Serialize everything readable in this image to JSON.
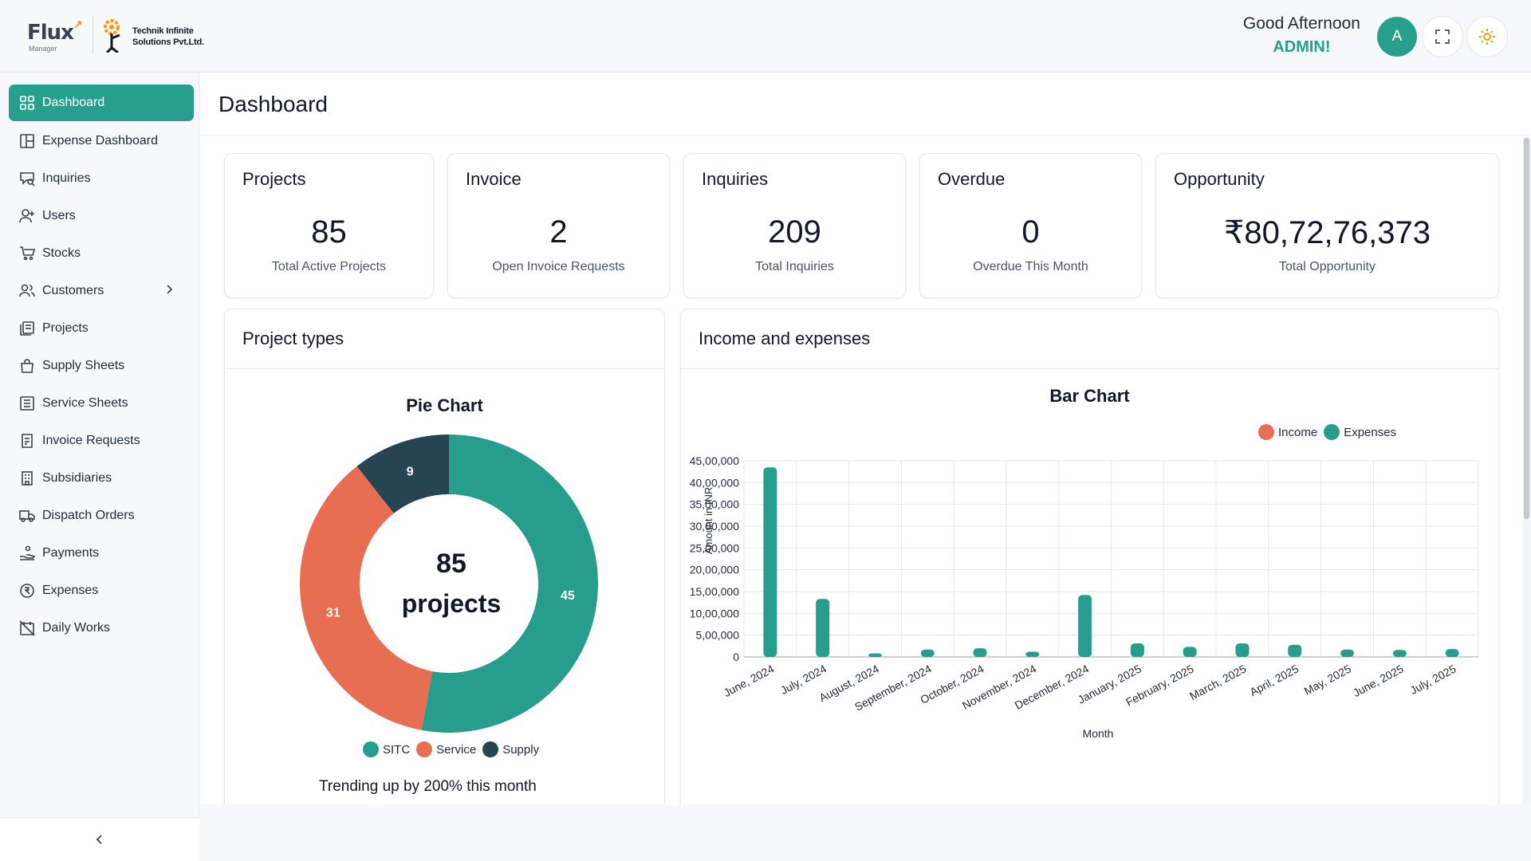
{
  "header": {
    "logo_text": "Flux",
    "logo_sub": "Manager",
    "company_line1": "Technik Infinite",
    "company_line2": "Solutions Pvt.Ltd.",
    "greeting": "Good Afternoon",
    "user_name": "ADMIN!",
    "avatar_letter": "A",
    "fullscreen_icon": "fullscreen-icon",
    "theme_icon": "sun-icon",
    "accent_color": "#26a08d"
  },
  "sidebar": {
    "items": [
      {
        "label": "Dashboard",
        "icon": "grid-icon",
        "active": true
      },
      {
        "label": "Expense Dashboard",
        "icon": "layout-icon"
      },
      {
        "label": "Inquiries",
        "icon": "message-search-icon"
      },
      {
        "label": "Users",
        "icon": "user-plus-icon"
      },
      {
        "label": "Stocks",
        "icon": "cart-icon"
      },
      {
        "label": "Customers",
        "icon": "users-icon",
        "has_submenu": true
      },
      {
        "label": "Projects",
        "icon": "files-icon"
      },
      {
        "label": "Supply Sheets",
        "icon": "bag-icon"
      },
      {
        "label": "Service Sheets",
        "icon": "list-icon"
      },
      {
        "label": "Invoice Requests",
        "icon": "invoice-icon"
      },
      {
        "label": "Subsidiaries",
        "icon": "building-icon"
      },
      {
        "label": "Dispatch Orders",
        "icon": "truck-icon"
      },
      {
        "label": "Payments",
        "icon": "hand-coin-icon"
      },
      {
        "label": "Expenses",
        "icon": "rupee-circle-icon"
      },
      {
        "label": "Daily Works",
        "icon": "calendar-off-icon"
      }
    ],
    "collapse_icon": "chevron-left-icon"
  },
  "main": {
    "title": "Dashboard",
    "cards": [
      {
        "title": "Projects",
        "value": "85",
        "sub": "Total Active Projects"
      },
      {
        "title": "Invoice",
        "value": "2",
        "sub": "Open Invoice Requests"
      },
      {
        "title": "Inquiries",
        "value": "209",
        "sub": "Total Inquiries"
      },
      {
        "title": "Overdue",
        "value": "0",
        "sub": "Overdue This Month"
      },
      {
        "title": "Opportunity",
        "value": "₹80,72,76,373",
        "sub": "Total Opportunity"
      }
    ],
    "pie_panel": {
      "title": "Project types",
      "chart_title": "Pie Chart",
      "center_value": "85",
      "center_label": "projects",
      "trend_text": "Trending up by 200% this month"
    },
    "bar_panel": {
      "title": "Income and expenses",
      "chart_title": "Bar Chart"
    }
  },
  "chart_data": [
    {
      "type": "pie",
      "title": "Pie Chart",
      "donut": true,
      "labels": [
        "SITC",
        "Service",
        "Supply"
      ],
      "values": [
        45,
        31,
        9
      ],
      "colors": [
        "#279d8e",
        "#e76e50",
        "#264553"
      ],
      "legend_position": "bottom"
    },
    {
      "type": "bar",
      "title": "Bar Chart",
      "xlabel": "Month",
      "ylabel": "Amount in INR",
      "categories": [
        "June, 2024",
        "July, 2024",
        "August, 2024",
        "September, 2024",
        "October, 2024",
        "November, 2024",
        "December, 2024",
        "January, 2025",
        "February, 2025",
        "March, 2025",
        "April, 2025",
        "May, 2025",
        "June, 2025",
        "July, 2025"
      ],
      "series": [
        {
          "name": "Income",
          "color": "#e76e50",
          "values": [
            0,
            0,
            0,
            0,
            0,
            0,
            0,
            0,
            0,
            0,
            0,
            0,
            0,
            0
          ]
        },
        {
          "name": "Expenses",
          "color": "#279d8e",
          "values": [
            4350000,
            1330000,
            80000,
            170000,
            200000,
            120000,
            1420000,
            310000,
            230000,
            310000,
            280000,
            170000,
            160000,
            180000
          ]
        }
      ],
      "ylim": [
        0,
        4500000
      ],
      "yticks": [
        "0",
        "5,00,000",
        "10,00,000",
        "15,00,000",
        "20,00,000",
        "25,00,000",
        "30,00,000",
        "35,00,000",
        "40,00,000",
        "45,00,000"
      ],
      "grid": true,
      "legend_position": "top-right"
    }
  ]
}
